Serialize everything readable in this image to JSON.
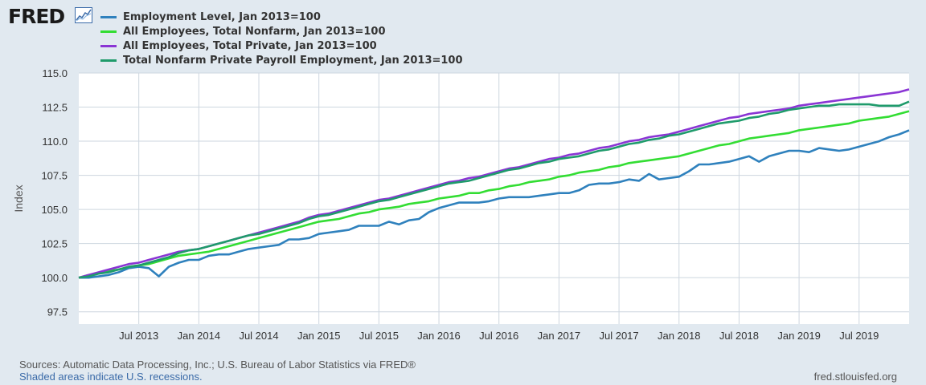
{
  "logo_text": "FRED",
  "colors": {
    "background": "#e1e9f0",
    "plot_bg": "#ffffff",
    "grid": "#cdd6df",
    "axis_text": "#333333",
    "footer_link": "#3a6aa8"
  },
  "footer": {
    "sources": "Sources: Automatic Data Processing, Inc.; U.S. Bureau of Labor Statistics via FRED®",
    "recessions": "Shaded areas indicate U.S. recessions.",
    "url": "fred.stlouisfed.org"
  },
  "chart_data": {
    "type": "line",
    "title": "",
    "xlabel": "",
    "ylabel": "Index",
    "xlim": [
      "2013-01",
      "2019-12"
    ],
    "ylim": [
      96.6,
      115.0
    ],
    "yticks": [
      97.5,
      100.0,
      102.5,
      105.0,
      107.5,
      110.0,
      112.5,
      115.0
    ],
    "ytick_labels": [
      "97.5",
      "100.0",
      "102.5",
      "105.0",
      "107.5",
      "110.0",
      "112.5",
      "115.0"
    ],
    "xticks": [
      {
        "date": "2013-07",
        "label": "Jul 2013"
      },
      {
        "date": "2014-01",
        "label": "Jan 2014"
      },
      {
        "date": "2014-07",
        "label": "Jul 2014"
      },
      {
        "date": "2015-01",
        "label": "Jan 2015"
      },
      {
        "date": "2015-07",
        "label": "Jul 2015"
      },
      {
        "date": "2016-01",
        "label": "Jan 2016"
      },
      {
        "date": "2016-07",
        "label": "Jul 2016"
      },
      {
        "date": "2017-01",
        "label": "Jan 2017"
      },
      {
        "date": "2017-07",
        "label": "Jul 2017"
      },
      {
        "date": "2018-01",
        "label": "Jan 2018"
      },
      {
        "date": "2018-07",
        "label": "Jul 2018"
      },
      {
        "date": "2019-01",
        "label": "Jan 2019"
      },
      {
        "date": "2019-07",
        "label": "Jul 2019"
      }
    ],
    "grid": true,
    "legend_position": "top-left",
    "x": [
      "2013-01",
      "2013-02",
      "2013-03",
      "2013-04",
      "2013-05",
      "2013-06",
      "2013-07",
      "2013-08",
      "2013-09",
      "2013-10",
      "2013-11",
      "2013-12",
      "2014-01",
      "2014-02",
      "2014-03",
      "2014-04",
      "2014-05",
      "2014-06",
      "2014-07",
      "2014-08",
      "2014-09",
      "2014-10",
      "2014-11",
      "2014-12",
      "2015-01",
      "2015-02",
      "2015-03",
      "2015-04",
      "2015-05",
      "2015-06",
      "2015-07",
      "2015-08",
      "2015-09",
      "2015-10",
      "2015-11",
      "2015-12",
      "2016-01",
      "2016-02",
      "2016-03",
      "2016-04",
      "2016-05",
      "2016-06",
      "2016-07",
      "2016-08",
      "2016-09",
      "2016-10",
      "2016-11",
      "2016-12",
      "2017-01",
      "2017-02",
      "2017-03",
      "2017-04",
      "2017-05",
      "2017-06",
      "2017-07",
      "2017-08",
      "2017-09",
      "2017-10",
      "2017-11",
      "2017-12",
      "2018-01",
      "2018-02",
      "2018-03",
      "2018-04",
      "2018-05",
      "2018-06",
      "2018-07",
      "2018-08",
      "2018-09",
      "2018-10",
      "2018-11",
      "2018-12",
      "2019-01",
      "2019-02",
      "2019-03",
      "2019-04",
      "2019-05",
      "2019-06",
      "2019-07",
      "2019-08",
      "2019-09",
      "2019-10",
      "2019-11",
      "2019-12"
    ],
    "series": [
      {
        "name": "Employment Level, Jan 2013=100",
        "color": "#2f81bd",
        "values": [
          100.0,
          100.0,
          100.1,
          100.2,
          100.4,
          100.7,
          100.8,
          100.7,
          100.1,
          100.8,
          101.1,
          101.3,
          101.3,
          101.6,
          101.7,
          101.7,
          101.9,
          102.1,
          102.2,
          102.3,
          102.4,
          102.8,
          102.8,
          102.9,
          103.2,
          103.3,
          103.4,
          103.5,
          103.8,
          103.8,
          103.8,
          104.1,
          103.9,
          104.2,
          104.3,
          104.8,
          105.1,
          105.3,
          105.5,
          105.5,
          105.5,
          105.6,
          105.8,
          105.9,
          105.9,
          105.9,
          106.0,
          106.1,
          106.2,
          106.2,
          106.4,
          106.8,
          106.9,
          106.9,
          107.0,
          107.2,
          107.1,
          107.6,
          107.2,
          107.3,
          107.4,
          107.8,
          108.3,
          108.3,
          108.4,
          108.5,
          108.7,
          108.9,
          108.5,
          108.9,
          109.1,
          109.3,
          109.3,
          109.2,
          109.5,
          109.4,
          109.3,
          109.4,
          109.6,
          109.8,
          110.0,
          110.3,
          110.5,
          110.8
        ]
      },
      {
        "name": "All Employees, Total Nonfarm, Jan 2013=100",
        "color": "#33dd33",
        "values": [
          100.0,
          100.2,
          100.3,
          100.5,
          100.6,
          100.8,
          100.9,
          101.0,
          101.2,
          101.4,
          101.6,
          101.7,
          101.8,
          101.9,
          102.1,
          102.3,
          102.5,
          102.7,
          102.9,
          103.1,
          103.3,
          103.5,
          103.7,
          103.9,
          104.1,
          104.2,
          104.3,
          104.5,
          104.7,
          104.8,
          105.0,
          105.1,
          105.2,
          105.4,
          105.5,
          105.6,
          105.8,
          105.9,
          106.0,
          106.2,
          106.2,
          106.4,
          106.5,
          106.7,
          106.8,
          107.0,
          107.1,
          107.2,
          107.4,
          107.5,
          107.7,
          107.8,
          107.9,
          108.1,
          108.2,
          108.4,
          108.5,
          108.6,
          108.7,
          108.8,
          108.9,
          109.1,
          109.3,
          109.5,
          109.7,
          109.8,
          110.0,
          110.2,
          110.3,
          110.4,
          110.5,
          110.6,
          110.8,
          110.9,
          111.0,
          111.1,
          111.2,
          111.3,
          111.5,
          111.6,
          111.7,
          111.8,
          112.0,
          112.2
        ]
      },
      {
        "name": "All Employees, Total Private, Jan 2013=100",
        "color": "#8a35d4",
        "values": [
          100.0,
          100.2,
          100.4,
          100.6,
          100.8,
          101.0,
          101.1,
          101.3,
          101.5,
          101.7,
          101.9,
          102.0,
          102.1,
          102.3,
          102.5,
          102.7,
          102.9,
          103.1,
          103.3,
          103.5,
          103.7,
          103.9,
          104.1,
          104.4,
          104.6,
          104.7,
          104.9,
          105.1,
          105.3,
          105.5,
          105.7,
          105.8,
          106.0,
          106.2,
          106.4,
          106.6,
          106.8,
          107.0,
          107.1,
          107.3,
          107.4,
          107.6,
          107.8,
          108.0,
          108.1,
          108.3,
          108.5,
          108.7,
          108.8,
          109.0,
          109.1,
          109.3,
          109.5,
          109.6,
          109.8,
          110.0,
          110.1,
          110.3,
          110.4,
          110.5,
          110.7,
          110.9,
          111.1,
          111.3,
          111.5,
          111.7,
          111.8,
          112.0,
          112.1,
          112.2,
          112.3,
          112.4,
          112.6,
          112.7,
          112.8,
          112.9,
          113.0,
          113.1,
          113.2,
          113.3,
          113.4,
          113.5,
          113.6,
          113.8
        ]
      },
      {
        "name": "Total Nonfarm Private Payroll Employment, Jan 2013=100",
        "color": "#1f9b6b",
        "values": [
          100.0,
          100.1,
          100.3,
          100.4,
          100.6,
          100.8,
          100.9,
          101.1,
          101.3,
          101.5,
          101.8,
          102.0,
          102.1,
          102.3,
          102.5,
          102.7,
          102.9,
          103.1,
          103.2,
          103.4,
          103.6,
          103.8,
          104.0,
          104.3,
          104.5,
          104.6,
          104.8,
          105.0,
          105.2,
          105.4,
          105.6,
          105.7,
          105.9,
          106.1,
          106.3,
          106.5,
          106.7,
          106.9,
          107.0,
          107.1,
          107.3,
          107.5,
          107.7,
          107.9,
          108.0,
          108.2,
          108.4,
          108.5,
          108.7,
          108.8,
          108.9,
          109.1,
          109.3,
          109.4,
          109.6,
          109.8,
          109.9,
          110.1,
          110.2,
          110.4,
          110.5,
          110.7,
          110.9,
          111.1,
          111.3,
          111.4,
          111.5,
          111.7,
          111.8,
          112.0,
          112.1,
          112.3,
          112.4,
          112.5,
          112.6,
          112.6,
          112.7,
          112.7,
          112.7,
          112.7,
          112.6,
          112.6,
          112.6,
          112.9
        ]
      }
    ]
  }
}
